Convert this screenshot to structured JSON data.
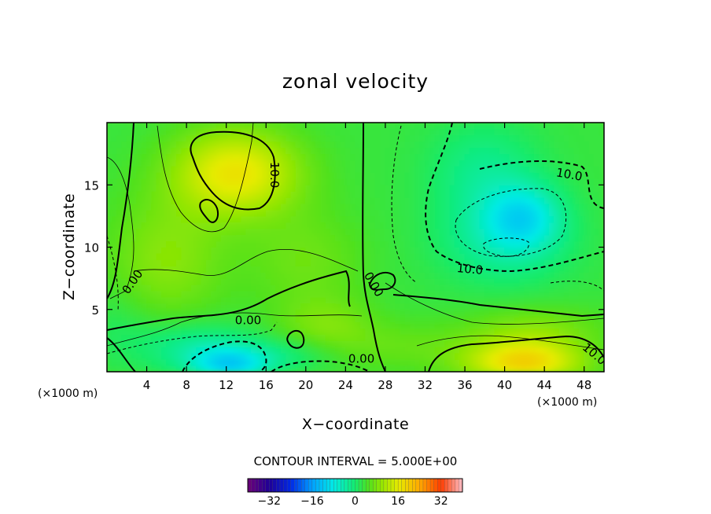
{
  "chart_data": {
    "type": "heatmap",
    "title": "zonal velocity",
    "xlabel": "X−coordinate",
    "ylabel": "Z−coordinate",
    "x_unit_left": "(×1000 m)",
    "x_unit_right": "(×1000 m)",
    "xlim": [
      0,
      50
    ],
    "ylim": [
      0,
      20
    ],
    "x_ticks": [
      {
        "value": 4,
        "label": "4"
      },
      {
        "value": 8,
        "label": "8"
      },
      {
        "value": 12,
        "label": "12"
      },
      {
        "value": 16,
        "label": "16"
      },
      {
        "value": 20,
        "label": "20"
      },
      {
        "value": 24,
        "label": "24"
      },
      {
        "value": 28,
        "label": "28"
      },
      {
        "value": 32,
        "label": "32"
      },
      {
        "value": 36,
        "label": "36"
      },
      {
        "value": 40,
        "label": "40"
      },
      {
        "value": 44,
        "label": "44"
      },
      {
        "value": 48,
        "label": "48"
      }
    ],
    "y_ticks": [
      {
        "value": 5,
        "label": "5"
      },
      {
        "value": 10,
        "label": "10"
      },
      {
        "value": 15,
        "label": "15"
      }
    ],
    "contour_interval_text": "CONTOUR INTERVAL = 5.000E+00",
    "colorbar": {
      "range": [
        -40,
        40
      ],
      "ticks": [
        {
          "value": -32,
          "label": "−32"
        },
        {
          "value": -16,
          "label": "−16"
        },
        {
          "value": 0,
          "label": "0"
        },
        {
          "value": 16,
          "label": "16"
        },
        {
          "value": 32,
          "label": "32"
        }
      ]
    },
    "contour_labels": [
      {
        "text": "10.0",
        "x": 16.8,
        "y": 15.8,
        "rotate": 90
      },
      {
        "text": "10.0",
        "x": 46.5,
        "y": 15.8,
        "rotate": 10
      },
      {
        "text": "10.0",
        "x": 36.5,
        "y": 8.2,
        "rotate": 5
      },
      {
        "text": "10.0",
        "x": 49.0,
        "y": 1.4,
        "rotate": 40
      },
      {
        "text": "0.00",
        "x": 2.6,
        "y": 7.2,
        "rotate": -55
      },
      {
        "text": "0.00",
        "x": 14.2,
        "y": 4.1,
        "rotate": 0
      },
      {
        "text": "0.00",
        "x": 25.6,
        "y": 1.0,
        "rotate": 0
      },
      {
        "text": "0.00",
        "x": 26.8,
        "y": 7.0,
        "rotate": 60
      }
    ],
    "field_features": [
      {
        "x": 13,
        "y": 16,
        "value": 14,
        "sx": 6.5,
        "sy": 3.5
      },
      {
        "x": 6,
        "y": 9,
        "value": 6,
        "sx": 6,
        "sy": 5
      },
      {
        "x": 20,
        "y": 9,
        "value": 4,
        "sx": 6,
        "sy": 4
      },
      {
        "x": 42,
        "y": 12.5,
        "value": -9,
        "sx": 3.8,
        "sy": 2.6
      },
      {
        "x": 40,
        "y": 10.5,
        "value": -6,
        "sx": 6.5,
        "sy": 3.5
      },
      {
        "x": 38,
        "y": 16,
        "value": -5,
        "sx": 5.5,
        "sy": 4
      },
      {
        "x": 12.5,
        "y": 0.6,
        "value": -12,
        "sx": 4,
        "sy": 1.4
      },
      {
        "x": 9,
        "y": 2,
        "value": -6,
        "sx": 6,
        "sy": 2
      },
      {
        "x": 19,
        "y": 1.5,
        "value": -4,
        "sx": 5,
        "sy": 1.5
      },
      {
        "x": 42,
        "y": 0.8,
        "value": 16,
        "sx": 6,
        "sy": 1.8
      },
      {
        "x": 43,
        "y": 3.5,
        "value": 5,
        "sx": 7,
        "sy": 1.8
      },
      {
        "x": 30,
        "y": 2,
        "value": 3,
        "sx": 7,
        "sy": 2
      },
      {
        "x": 22,
        "y": 3.5,
        "value": 5,
        "sx": 5,
        "sy": 2.5
      },
      {
        "x": 1,
        "y": 4,
        "value": -2,
        "sx": 4,
        "sy": 3
      }
    ],
    "field_background": 3
  }
}
